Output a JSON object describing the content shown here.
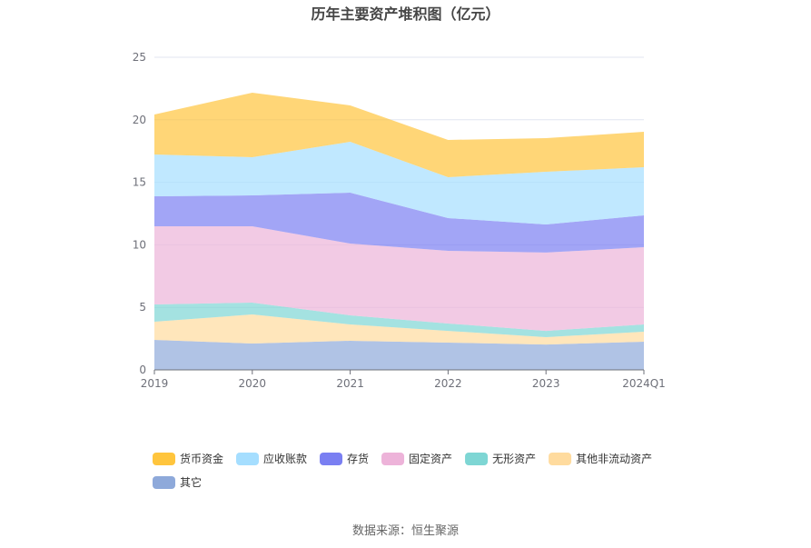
{
  "chart_data": {
    "type": "area",
    "stacked": true,
    "title": "历年主要资产堆积图（亿元）",
    "categories": [
      "2019",
      "2020",
      "2021",
      "2022",
      "2023",
      "2024Q1"
    ],
    "ylim": [
      0,
      25
    ],
    "yticks": [
      0,
      5,
      10,
      15,
      20,
      25
    ],
    "grid": true,
    "legend_position": "bottom",
    "series": [
      {
        "name": "货币资金",
        "color": "#FFC53D",
        "values": [
          3.2,
          5.16,
          2.91,
          2.98,
          2.69,
          2.83
        ]
      },
      {
        "name": "应收账款",
        "color": "#A5DEFF",
        "values": [
          3.34,
          3.06,
          4.07,
          3.27,
          4.21,
          3.86
        ]
      },
      {
        "name": "存货",
        "color": "#7A7FF2",
        "values": [
          2.4,
          2.47,
          4.07,
          2.62,
          2.25,
          2.54
        ]
      },
      {
        "name": "固定资产",
        "color": "#EDB3D9",
        "values": [
          6.25,
          6.1,
          5.74,
          5.81,
          6.26,
          6.18
        ]
      },
      {
        "name": "无形资产",
        "color": "#7ED6D4",
        "values": [
          1.38,
          0.95,
          0.73,
          0.59,
          0.5,
          0.58
        ]
      },
      {
        "name": "其他非流动资产",
        "color": "#FFDB9E",
        "values": [
          1.45,
          2.32,
          1.3,
          0.94,
          0.59,
          0.8
        ]
      },
      {
        "name": "其它",
        "color": "#8EA9DA",
        "values": [
          2.4,
          2.11,
          2.33,
          2.18,
          2.03,
          2.25
        ]
      }
    ]
  },
  "source": "数据来源：恒生聚源"
}
